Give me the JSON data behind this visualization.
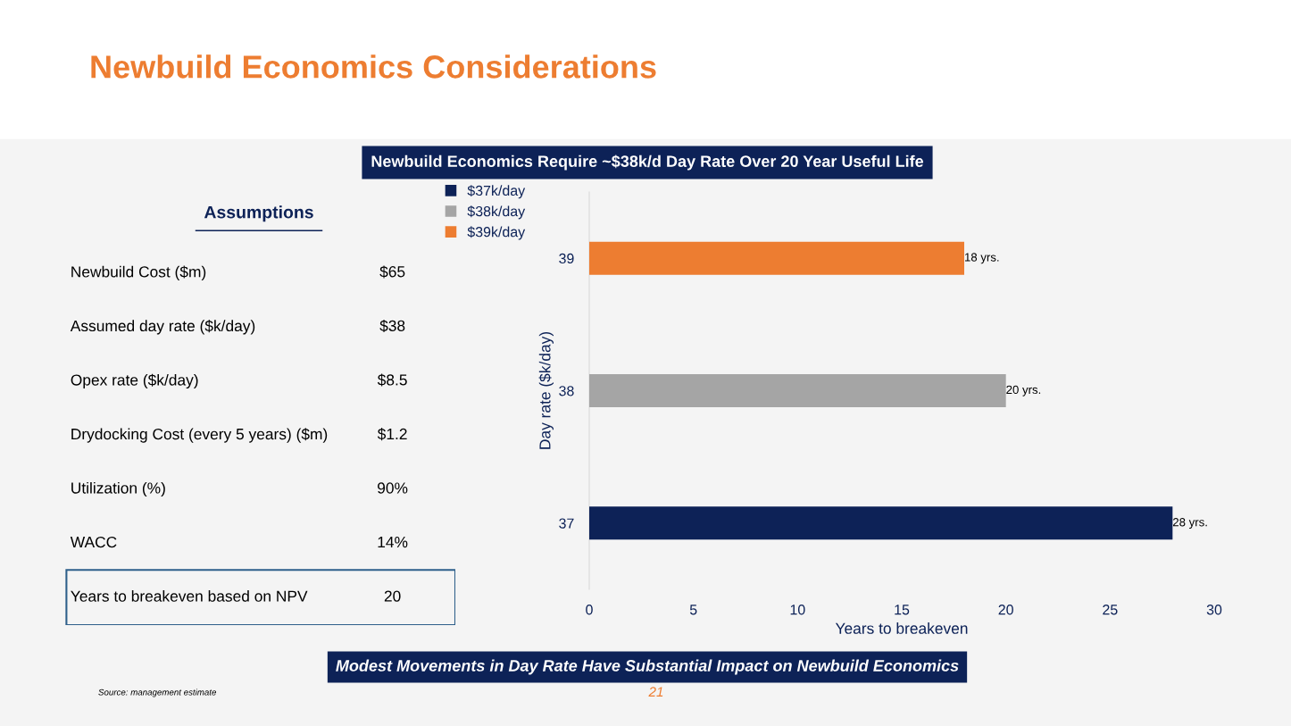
{
  "chart_data": [
    {
      "type": "other",
      "title": "Assumptions",
      "categories": [
        "Newbuild Cost ($m)",
        "Assumed day rate ($k/day)",
        "Opex rate ($k/day)",
        "Drydocking Cost (every 5 years) ($m)",
        "Utilization (%)",
        "WACC",
        "Years to breakeven based on NPV"
      ],
      "value_labels": [
        "$65",
        "$38",
        "$8.5",
        "$1.2",
        "90%",
        "14%",
        "20"
      ]
    },
    {
      "type": "bar",
      "orientation": "horizontal",
      "title": "Newbuild Economics Considerations",
      "subtitle": "Newbuild Economics Require ~$38k/d Day Rate Over 20 Year Useful Life",
      "categories": [
        "39",
        "38",
        "37"
      ],
      "series": [
        {
          "name": "$37k/day",
          "color": "#0d2257",
          "values": [
            null,
            null,
            28
          ],
          "value_labels": [
            null,
            null,
            "28 yrs."
          ]
        },
        {
          "name": "$38k/day",
          "color": "#a5a5a5",
          "values": [
            null,
            20,
            null
          ],
          "value_labels": [
            null,
            "20 yrs.",
            null
          ]
        },
        {
          "name": "$39k/day",
          "color": "#ed7d31",
          "values": [
            18,
            null,
            null
          ],
          "value_labels": [
            "18 yrs.",
            null,
            null
          ]
        }
      ],
      "xlim": [
        0,
        30
      ],
      "xticks": [
        0,
        5,
        10,
        15,
        20,
        25,
        30
      ],
      "xlabel": "Years to breakeven",
      "ylabel": "Day rate ($k/day)",
      "legend": "top left",
      "annotations": [
        "Modest Movements in Day Rate Have Substantial Impact on Newbuild Economics",
        "Source: management estimate",
        "21"
      ]
    }
  ]
}
